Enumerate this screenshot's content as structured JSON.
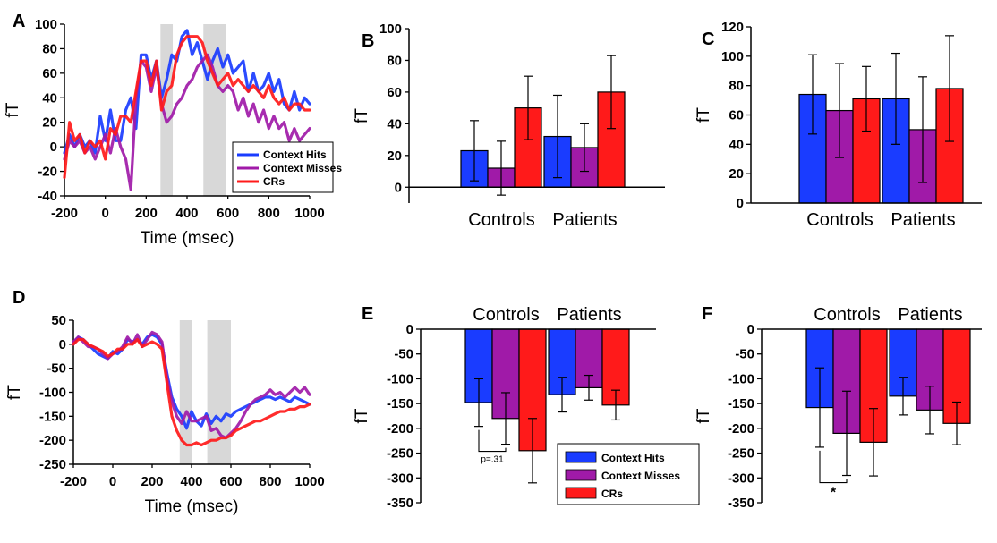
{
  "legend": [
    {
      "name": "Context Hits",
      "color": "#1a3cff"
    },
    {
      "name": "Context Misses",
      "color": "#a01aa8"
    },
    {
      "name": "CRs",
      "color": "#ff1a1a"
    }
  ],
  "chart_data": [
    {
      "id": "A",
      "type": "line",
      "letter": "A",
      "xlabel": "Time (msec)",
      "ylabel": "fT",
      "xlim": [
        -200,
        1000
      ],
      "ylim": [
        -40,
        100
      ],
      "xticks": [
        -200,
        0,
        200,
        400,
        600,
        800,
        1000
      ],
      "yticks": [
        -40,
        -20,
        0,
        20,
        40,
        60,
        80,
        100
      ],
      "shaded_regions": [
        [
          270,
          330
        ],
        [
          480,
          590
        ]
      ],
      "legend_position": "bottom-right",
      "x": [
        -200,
        -175,
        -150,
        -125,
        -100,
        -75,
        -50,
        -25,
        0,
        25,
        50,
        75,
        100,
        125,
        150,
        175,
        200,
        225,
        250,
        275,
        300,
        325,
        350,
        375,
        400,
        425,
        450,
        475,
        500,
        525,
        550,
        575,
        600,
        625,
        650,
        675,
        700,
        725,
        750,
        775,
        800,
        825,
        850,
        875,
        900,
        925,
        950,
        975,
        1000
      ],
      "series": [
        {
          "name": "Context Hits",
          "values": [
            -5,
            10,
            0,
            10,
            0,
            5,
            -5,
            25,
            5,
            30,
            5,
            5,
            30,
            40,
            15,
            75,
            75,
            55,
            70,
            40,
            55,
            75,
            70,
            90,
            95,
            75,
            85,
            70,
            55,
            70,
            80,
            65,
            75,
            60,
            65,
            70,
            45,
            60,
            45,
            50,
            60,
            45,
            55,
            35,
            30,
            45,
            30,
            40,
            35
          ]
        },
        {
          "name": "Context Misses",
          "values": [
            -10,
            5,
            0,
            5,
            -5,
            0,
            -10,
            0,
            10,
            -5,
            15,
            0,
            -10,
            -35,
            40,
            70,
            65,
            45,
            65,
            35,
            20,
            25,
            35,
            40,
            50,
            55,
            65,
            70,
            75,
            65,
            50,
            45,
            50,
            45,
            30,
            40,
            25,
            35,
            20,
            30,
            15,
            25,
            15,
            20,
            5,
            15,
            5,
            10,
            15
          ]
        },
        {
          "name": "CRs",
          "values": [
            -25,
            20,
            5,
            10,
            -5,
            5,
            0,
            5,
            -10,
            15,
            10,
            25,
            25,
            20,
            45,
            70,
            70,
            50,
            70,
            30,
            45,
            50,
            75,
            85,
            90,
            90,
            90,
            85,
            70,
            60,
            50,
            55,
            60,
            50,
            55,
            50,
            45,
            50,
            45,
            40,
            50,
            40,
            35,
            40,
            30,
            35,
            35,
            30,
            30
          ]
        }
      ]
    },
    {
      "id": "B",
      "type": "bar",
      "letter": "B",
      "ylabel": "fT",
      "ylim": [
        -10,
        100
      ],
      "yticks": [
        0,
        20,
        40,
        60,
        80,
        100
      ],
      "categories": [
        "Controls",
        "Patients"
      ],
      "series": [
        {
          "name": "Context Hits",
          "values": [
            23,
            32
          ],
          "errors": [
            19,
            26
          ]
        },
        {
          "name": "Context Misses",
          "values": [
            12,
            25
          ],
          "errors": [
            17,
            15
          ]
        },
        {
          "name": "CRs",
          "values": [
            50,
            60
          ],
          "errors": [
            20,
            23
          ]
        }
      ]
    },
    {
      "id": "C",
      "type": "bar",
      "letter": "C",
      "ylabel": "fT",
      "ylim": [
        0,
        120
      ],
      "yticks": [
        0,
        20,
        40,
        60,
        80,
        100,
        120
      ],
      "categories": [
        "Controls",
        "Patients"
      ],
      "series": [
        {
          "name": "Context Hits",
          "values": [
            74,
            71
          ],
          "errors": [
            27,
            31
          ]
        },
        {
          "name": "Context Misses",
          "values": [
            63,
            50
          ],
          "errors": [
            32,
            36
          ]
        },
        {
          "name": "CRs",
          "values": [
            71,
            78
          ],
          "errors": [
            22,
            36
          ]
        }
      ]
    },
    {
      "id": "D",
      "type": "line",
      "letter": "D",
      "xlabel": "Time (msec)",
      "ylabel": "fT",
      "xlim": [
        -200,
        1000
      ],
      "ylim": [
        -250,
        50
      ],
      "xticks": [
        -200,
        0,
        200,
        400,
        600,
        800,
        1000
      ],
      "yticks": [
        -250,
        -200,
        -150,
        -100,
        -50,
        0,
        50
      ],
      "shaded_regions": [
        [
          340,
          400
        ],
        [
          480,
          600
        ]
      ],
      "x": [
        -200,
        -175,
        -150,
        -125,
        -100,
        -75,
        -50,
        -25,
        0,
        25,
        50,
        75,
        100,
        125,
        150,
        175,
        200,
        225,
        250,
        275,
        300,
        325,
        350,
        375,
        400,
        425,
        450,
        475,
        500,
        525,
        550,
        575,
        600,
        625,
        650,
        675,
        700,
        725,
        750,
        775,
        800,
        825,
        850,
        875,
        900,
        925,
        950,
        975,
        1000
      ],
      "series": [
        {
          "name": "Context Hits",
          "values": [
            0,
            15,
            10,
            0,
            -10,
            -20,
            -25,
            -30,
            -15,
            -20,
            -10,
            10,
            5,
            10,
            0,
            15,
            20,
            15,
            0,
            -60,
            -110,
            -135,
            -150,
            -175,
            -140,
            -160,
            -170,
            -145,
            -165,
            -150,
            -160,
            -145,
            -150,
            -140,
            -135,
            -130,
            -125,
            -120,
            -115,
            -110,
            -110,
            -115,
            -110,
            -115,
            -120,
            -110,
            -115,
            -120,
            -125
          ]
        },
        {
          "name": "Context Misses",
          "values": [
            5,
            15,
            5,
            -5,
            -5,
            -10,
            -20,
            -30,
            -20,
            -15,
            -5,
            15,
            0,
            20,
            -5,
            10,
            25,
            20,
            5,
            -70,
            -120,
            -150,
            -165,
            -140,
            -160,
            -160,
            -155,
            -150,
            -180,
            -175,
            -190,
            -195,
            -185,
            -175,
            -160,
            -140,
            -125,
            -115,
            -110,
            -105,
            -95,
            -105,
            -100,
            -110,
            -100,
            -90,
            -100,
            -90,
            -105
          ]
        },
        {
          "name": "CRs",
          "values": [
            0,
            10,
            10,
            0,
            -5,
            -10,
            -15,
            -25,
            -20,
            -10,
            -10,
            0,
            0,
            10,
            -5,
            0,
            5,
            0,
            -10,
            -80,
            -150,
            -180,
            -200,
            -210,
            -210,
            -205,
            -210,
            -205,
            -200,
            -200,
            -195,
            -195,
            -190,
            -180,
            -175,
            -170,
            -165,
            -160,
            -160,
            -155,
            -150,
            -145,
            -140,
            -140,
            -135,
            -135,
            -130,
            -130,
            -125
          ]
        }
      ]
    },
    {
      "id": "E",
      "type": "bar",
      "letter": "E",
      "ylabel": "fT",
      "ylim": [
        -350,
        0
      ],
      "yticks": [
        -350,
        -300,
        -250,
        -200,
        -150,
        -100,
        -50,
        0
      ],
      "categories": [
        "Controls",
        "Patients"
      ],
      "series": [
        {
          "name": "Context Hits",
          "values": [
            -148,
            -132
          ],
          "errors": [
            48,
            35
          ]
        },
        {
          "name": "Context Misses",
          "values": [
            -180,
            -118
          ],
          "errors": [
            52,
            25
          ]
        },
        {
          "name": "CRs",
          "values": [
            -245,
            -153
          ],
          "errors": [
            65,
            30
          ]
        }
      ],
      "annotation": {
        "text": "p=.31",
        "between": [
          "Context Hits",
          "Context Misses"
        ],
        "category": "Controls"
      },
      "legend_position": "bottom-center"
    },
    {
      "id": "F",
      "type": "bar",
      "letter": "F",
      "ylabel": "fT",
      "ylim": [
        -350,
        0
      ],
      "yticks": [
        -350,
        -300,
        -250,
        -200,
        -150,
        -100,
        -50,
        0
      ],
      "categories": [
        "Controls",
        "Patients"
      ],
      "series": [
        {
          "name": "Context Hits",
          "values": [
            -158,
            -135
          ],
          "errors": [
            80,
            38
          ]
        },
        {
          "name": "Context Misses",
          "values": [
            -210,
            -163
          ],
          "errors": [
            85,
            48
          ]
        },
        {
          "name": "CRs",
          "values": [
            -228,
            -190
          ],
          "errors": [
            68,
            43
          ]
        }
      ],
      "annotation": {
        "text": "*",
        "between": [
          "Context Hits",
          "Context Misses"
        ],
        "category": "Controls"
      }
    }
  ]
}
